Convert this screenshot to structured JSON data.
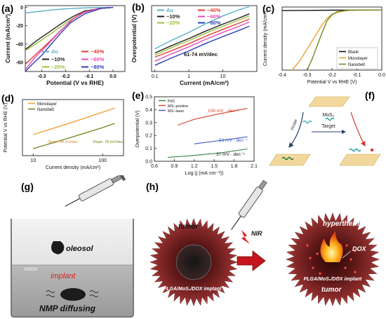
{
  "panel_labels": [
    "(a)",
    "(b)",
    "(c)",
    "(d)",
    "(e)",
    "(f)",
    "(g)",
    "(h)"
  ],
  "chart_data": [
    {
      "id": "a",
      "type": "line",
      "xlabel": "Potential (V vs RHE)",
      "ylabel": "Current (mA/cm²)",
      "xlim": [
        -0.37,
        0.05
      ],
      "ylim": [
        -70,
        2
      ],
      "xticks": [
        "-0.3",
        "-0.2",
        "-0.1",
        "0.0"
      ],
      "xtick_values": [
        -0.3,
        -0.2,
        -0.1,
        0.0
      ],
      "yticks": [
        "0",
        "-20",
        "-40",
        "-60"
      ],
      "ytick_values": [
        0,
        -20,
        -40,
        -60
      ],
      "series": [
        {
          "name": "Au",
          "color": "#59b0c6",
          "x": [
            -0.37,
            -0.3,
            -0.25,
            -0.2,
            -0.15,
            -0.1,
            0.0
          ],
          "y": [
            -6,
            -4,
            -2.5,
            -1.5,
            -0.8,
            -0.3,
            0
          ]
        },
        {
          "name": "~10%",
          "color": "#202020",
          "x": [
            -0.37,
            -0.32,
            -0.27,
            -0.22,
            -0.17,
            -0.12,
            -0.05,
            0.0
          ],
          "y": [
            -46,
            -36,
            -27,
            -18,
            -10,
            -4,
            -1,
            0
          ]
        },
        {
          "name": "~20%",
          "color": "#9cbf3a",
          "x": [
            -0.37,
            -0.32,
            -0.27,
            -0.22,
            -0.17,
            -0.12,
            -0.05,
            0.0
          ],
          "y": [
            -47,
            -39,
            -30,
            -21,
            -12,
            -5,
            -1,
            0
          ]
        },
        {
          "name": "~40%",
          "color": "#e03b2f",
          "x": [
            -0.37,
            -0.32,
            -0.27,
            -0.22,
            -0.17,
            -0.12,
            -0.05,
            0.0
          ],
          "y": [
            -62,
            -50,
            -38,
            -25,
            -13,
            -5,
            -1,
            0
          ]
        },
        {
          "name": "~60%",
          "color": "#e84bb6",
          "x": [
            -0.37,
            -0.33,
            -0.28,
            -0.23,
            -0.18,
            -0.13,
            -0.06,
            0.0
          ],
          "y": [
            -68,
            -55,
            -42,
            -28,
            -15,
            -6,
            -1,
            0
          ]
        },
        {
          "name": "~80%",
          "color": "#2b3fb5",
          "x": [
            -0.37,
            -0.34,
            -0.3,
            -0.26,
            -0.22,
            -0.18,
            -0.12,
            -0.05,
            0.0
          ],
          "y": [
            -70,
            -62,
            -52,
            -40,
            -28,
            -17,
            -7,
            -1,
            0
          ]
        }
      ]
    },
    {
      "id": "b",
      "type": "line",
      "xlabel": "Current (mA/cm²)",
      "ylabel": "Overpotential (V)",
      "annotation": "61-74 mV/dec",
      "xscale": "log",
      "xlim": [
        0.08,
        100
      ],
      "xticks": [
        "0.1",
        "1",
        "10"
      ],
      "xtick_values": [
        0.1,
        1,
        10
      ],
      "ylim": [
        0.04,
        0.36
      ],
      "series": [
        {
          "name": "Au",
          "color": "#59b0c6",
          "x": [
            0.1,
            0.3,
            1,
            3,
            10,
            30,
            60
          ],
          "y": [
            0.15,
            0.19,
            0.23,
            0.27,
            0.31,
            0.34,
            0.355
          ]
        },
        {
          "name": "~10%",
          "color": "#202020",
          "x": [
            0.1,
            0.3,
            1,
            3,
            10,
            30,
            60
          ],
          "y": [
            0.13,
            0.165,
            0.2,
            0.235,
            0.27,
            0.3,
            0.32
          ]
        },
        {
          "name": "~20%",
          "color": "#9cbf3a",
          "x": [
            0.1,
            0.3,
            1,
            3,
            10,
            30,
            60
          ],
          "y": [
            0.12,
            0.155,
            0.19,
            0.225,
            0.26,
            0.29,
            0.31
          ]
        },
        {
          "name": "~40%",
          "color": "#e03b2f",
          "x": [
            0.1,
            0.3,
            1,
            3,
            10,
            30,
            60
          ],
          "y": [
            0.11,
            0.14,
            0.175,
            0.21,
            0.245,
            0.275,
            0.295
          ]
        },
        {
          "name": "~60%",
          "color": "#e84bb6",
          "x": [
            0.1,
            0.3,
            1,
            3,
            10,
            30,
            60
          ],
          "y": [
            0.09,
            0.125,
            0.16,
            0.195,
            0.23,
            0.26,
            0.28
          ]
        },
        {
          "name": "~80%",
          "color": "#2b3fb5",
          "x": [
            0.1,
            0.3,
            1,
            3,
            10,
            30,
            60
          ],
          "y": [
            0.07,
            0.105,
            0.14,
            0.175,
            0.21,
            0.24,
            0.26
          ]
        }
      ]
    },
    {
      "id": "c",
      "type": "line",
      "xlabel": "Potential V vs RHE (V)",
      "ylabel": "Current density (mA/cm²)",
      "xlim": [
        -0.4,
        0.0
      ],
      "ylim": [
        -1,
        0.05
      ],
      "xticks": [
        "-0.4",
        "-0.3",
        "-0.2",
        "-0.1",
        "0.0"
      ],
      "xtick_values": [
        -0.4,
        -0.3,
        -0.2,
        -0.1,
        0.0
      ],
      "series": [
        {
          "name": "Blank",
          "color": "#111111",
          "x": [
            -0.4,
            -0.3,
            -0.2,
            -0.1,
            0.0
          ],
          "y": [
            -0.01,
            -0.006,
            -0.003,
            -0.001,
            0
          ]
        },
        {
          "name": "Monolayer",
          "color": "#f0a030",
          "x": [
            -0.36,
            -0.33,
            -0.3,
            -0.27,
            -0.24,
            -0.22,
            -0.2,
            -0.17,
            -0.14,
            -0.1,
            0.0
          ],
          "y": [
            -1.0,
            -0.85,
            -0.65,
            -0.45,
            -0.25,
            -0.14,
            -0.07,
            -0.03,
            -0.01,
            0,
            0
          ]
        },
        {
          "name": "Nanobelt",
          "color": "#6e8a1e",
          "x": [
            -0.3,
            -0.28,
            -0.26,
            -0.24,
            -0.22,
            -0.2,
            -0.18,
            -0.15,
            -0.1,
            0.0
          ],
          "y": [
            -1.0,
            -0.82,
            -0.6,
            -0.38,
            -0.18,
            -0.08,
            -0.03,
            -0.01,
            0,
            0
          ]
        }
      ]
    },
    {
      "id": "d",
      "type": "line",
      "xlabel": "Current density (mA/cm²)",
      "ylabel": "Potential V vs RHE (V)",
      "xscale": "log",
      "xlim": [
        7,
        200
      ],
      "xticks": [
        "10",
        "100"
      ],
      "xtick_values": [
        10,
        100
      ],
      "ylim": [
        0.15,
        0.35
      ],
      "series": [
        {
          "name": "Monolayer",
          "color": "#f0a030",
          "x": [
            10,
            30,
            100,
            150
          ],
          "y": [
            0.225,
            0.262,
            0.305,
            0.32
          ]
        },
        {
          "name": "Nanobelt",
          "color": "#6e8a1e",
          "x": [
            10,
            30,
            100,
            150
          ],
          "y": [
            0.175,
            0.21,
            0.25,
            0.265
          ]
        }
      ],
      "annotations": [
        "Slope: 90 mV/dec",
        "Slope: 78 mV/dec"
      ]
    },
    {
      "id": "e",
      "type": "line",
      "xlabel": "Log (j (mA·cm⁻²))",
      "ylabel": "Overpotential (V)",
      "xlim": [
        0.6,
        2.1
      ],
      "ylim": [
        0,
        0.5
      ],
      "xticks": [
        "0.6",
        "0.9",
        "1.2",
        "1.5",
        "1.8",
        "2.1"
      ],
      "xtick_values": [
        0.6,
        0.9,
        1.2,
        1.5,
        1.8,
        2.1
      ],
      "yticks": [
        "0.0",
        "0.1",
        "0.2",
        "0.3",
        "0.4",
        "0.5"
      ],
      "ytick_values": [
        0,
        0.1,
        0.2,
        0.3,
        0.4,
        0.5
      ],
      "series": [
        {
          "name": "Pt/C",
          "color": "#2e7d3a",
          "x": [
            0.8,
            1.2,
            1.6,
            2.0
          ],
          "y": [
            0.03,
            0.045,
            0.065,
            0.095
          ]
        },
        {
          "name": "MS−pristine",
          "color": "#d9412e",
          "x": [
            0.95,
            1.2,
            1.5,
            1.8,
            2.0
          ],
          "y": [
            0.28,
            0.325,
            0.36,
            0.39,
            0.41
          ]
        },
        {
          "name": "MS−laser",
          "color": "#3a56c4",
          "x": [
            1.2,
            1.5,
            1.8,
            2.0
          ],
          "y": [
            0.135,
            0.155,
            0.175,
            0.19
          ]
        }
      ],
      "annotations": [
        "109 mV · dec⁻¹",
        "53 mV · dec⁻¹",
        "37 mV · dec⁻¹"
      ]
    }
  ],
  "panel_f": {
    "label_mos2": "MoS₂",
    "label_target": "Target",
    "label_probe": "Probe"
  },
  "panel_g": {
    "label_oleosol": "oleosol",
    "label_water": "water",
    "label_implant": "implant",
    "label_nmp": "NMP diffusing"
  },
  "panel_h": {
    "label_tumor_left": "tumor",
    "label_implant_left": "PLGA/MoS₂/DOX implant",
    "label_nir": "NIR",
    "label_hyperthermia": "hyperthermia",
    "label_dox": "DOX",
    "label_implant_right": "PLGA/MoS₂/DOX implant",
    "label_tumor_right": "tumor"
  },
  "colors": {
    "tumor": "#8a2a2a",
    "tumor_dark": "#3a0d0d",
    "arrow": "#c4161c",
    "mos2_plate": "#f2d89c"
  }
}
